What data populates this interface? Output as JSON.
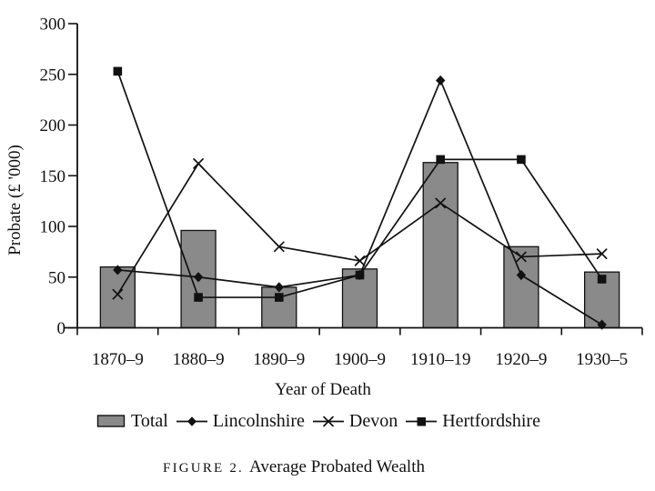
{
  "figure": {
    "caption_label": "FIGURE 2.",
    "caption_title": "Average Probated Wealth"
  },
  "colors": {
    "bar_fill": "#8a8a8a",
    "ink": "#111111",
    "background": "#ffffff"
  },
  "chart_data": {
    "type": "bar",
    "subtype": "bar-line-combo",
    "title": "Average Probated Wealth",
    "xlabel": "Year of Death",
    "ylabel": "Probate (£ '000)",
    "categories": [
      "1870–9",
      "1880–9",
      "1890–9",
      "1900–9",
      "1910–19",
      "1920–9",
      "1930–5"
    ],
    "ylim": [
      0,
      300
    ],
    "yticks": [
      0,
      50,
      100,
      150,
      200,
      250,
      300
    ],
    "grid": false,
    "legend_position": "bottom",
    "series": [
      {
        "name": "Total",
        "type": "bar",
        "marker": "bar",
        "color": "#8a8a8a",
        "values": [
          60,
          96,
          40,
          58,
          163,
          80,
          55
        ]
      },
      {
        "name": "Lincolnshire",
        "type": "line",
        "marker": "diamond",
        "color": "#111111",
        "values": [
          57,
          50,
          40,
          52,
          244,
          52,
          3
        ]
      },
      {
        "name": "Devon",
        "type": "line",
        "marker": "x",
        "color": "#111111",
        "values": [
          33,
          162,
          80,
          66,
          123,
          70,
          73
        ]
      },
      {
        "name": "Hertfordshire",
        "type": "line",
        "marker": "square",
        "color": "#111111",
        "values": [
          253,
          30,
          30,
          52,
          166,
          166,
          48
        ]
      }
    ]
  }
}
